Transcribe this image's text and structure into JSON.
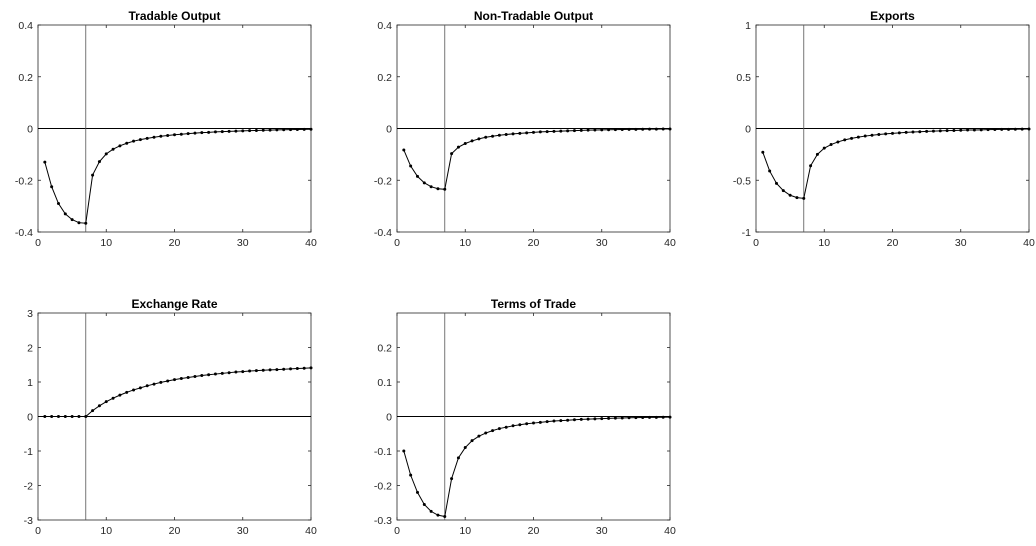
{
  "chart_data": [
    {
      "type": "line",
      "title": "Tradable Output",
      "xlim": [
        0,
        40
      ],
      "ylim": [
        -0.4,
        0.4
      ],
      "xticks": [
        "0",
        "10",
        "20",
        "30",
        "40"
      ],
      "yticks": [
        "-0.4",
        "-0.2",
        "0",
        "0.2",
        "0.4"
      ],
      "vline_x": 7,
      "zero_line": true,
      "x": [
        1,
        2,
        3,
        4,
        5,
        6,
        7,
        8,
        9,
        10,
        11,
        12,
        13,
        14,
        15,
        16,
        17,
        18,
        19,
        20,
        21,
        22,
        23,
        24,
        25,
        26,
        27,
        28,
        29,
        30,
        31,
        32,
        33,
        34,
        35,
        36,
        37,
        38,
        39,
        40
      ],
      "series": [
        {
          "values": [
            -0.13,
            -0.225,
            -0.29,
            -0.33,
            -0.352,
            -0.364,
            -0.366,
            -0.18,
            -0.128,
            -0.098,
            -0.08,
            -0.067,
            -0.057,
            -0.049,
            -0.043,
            -0.038,
            -0.034,
            -0.03,
            -0.027,
            -0.024,
            -0.022,
            -0.02,
            -0.018,
            -0.016,
            -0.015,
            -0.013,
            -0.012,
            -0.011,
            -0.01,
            -0.009,
            -0.008,
            -0.0075,
            -0.007,
            -0.0062,
            -0.0055,
            -0.005,
            -0.0045,
            -0.004,
            -0.0035,
            -0.003
          ]
        }
      ]
    },
    {
      "type": "line",
      "title": "Non-Tradable Output",
      "xlim": [
        0,
        40
      ],
      "ylim": [
        -0.4,
        0.4
      ],
      "xticks": [
        "0",
        "10",
        "20",
        "30",
        "40"
      ],
      "yticks": [
        "-0.4",
        "-0.2",
        "0",
        "0.2",
        "0.4"
      ],
      "vline_x": 7,
      "zero_line": true,
      "x": [
        1,
        2,
        3,
        4,
        5,
        6,
        7,
        8,
        9,
        10,
        11,
        12,
        13,
        14,
        15,
        16,
        17,
        18,
        19,
        20,
        21,
        22,
        23,
        24,
        25,
        26,
        27,
        28,
        29,
        30,
        31,
        32,
        33,
        34,
        35,
        36,
        37,
        38,
        39,
        40
      ],
      "series": [
        {
          "values": [
            -0.083,
            -0.145,
            -0.185,
            -0.21,
            -0.225,
            -0.233,
            -0.235,
            -0.097,
            -0.072,
            -0.058,
            -0.048,
            -0.04,
            -0.034,
            -0.03,
            -0.026,
            -0.023,
            -0.021,
            -0.019,
            -0.017,
            -0.015,
            -0.013,
            -0.012,
            -0.011,
            -0.01,
            -0.009,
            -0.008,
            -0.0072,
            -0.0065,
            -0.006,
            -0.0054,
            -0.0049,
            -0.0044,
            -0.004,
            -0.0036,
            -0.0032,
            -0.0029,
            -0.0026,
            -0.0023,
            -0.002,
            -0.0018
          ]
        }
      ]
    },
    {
      "type": "line",
      "title": "Exports",
      "xlim": [
        0,
        40
      ],
      "ylim": [
        -1,
        1
      ],
      "xticks": [
        "0",
        "10",
        "20",
        "30",
        "40"
      ],
      "yticks": [
        "-1",
        "-0.5",
        "0",
        "0.5",
        "1"
      ],
      "vline_x": 7,
      "zero_line": true,
      "x": [
        1,
        2,
        3,
        4,
        5,
        6,
        7,
        8,
        9,
        10,
        11,
        12,
        13,
        14,
        15,
        16,
        17,
        18,
        19,
        20,
        21,
        22,
        23,
        24,
        25,
        26,
        27,
        28,
        29,
        30,
        31,
        32,
        33,
        34,
        35,
        36,
        37,
        38,
        39,
        40
      ],
      "series": [
        {
          "values": [
            -0.23,
            -0.41,
            -0.53,
            -0.6,
            -0.645,
            -0.668,
            -0.675,
            -0.36,
            -0.25,
            -0.19,
            -0.155,
            -0.13,
            -0.11,
            -0.095,
            -0.083,
            -0.073,
            -0.065,
            -0.058,
            -0.052,
            -0.047,
            -0.042,
            -0.038,
            -0.034,
            -0.031,
            -0.028,
            -0.025,
            -0.023,
            -0.021,
            -0.019,
            -0.017,
            -0.015,
            -0.014,
            -0.013,
            -0.011,
            -0.01,
            -0.009,
            -0.008,
            -0.007,
            -0.006,
            -0.005
          ]
        }
      ]
    },
    {
      "type": "line",
      "title": "Exchange Rate",
      "xlim": [
        0,
        40
      ],
      "ylim": [
        -3,
        3
      ],
      "xticks": [
        "0",
        "10",
        "20",
        "30",
        "40"
      ],
      "yticks": [
        "-3",
        "-2",
        "-1",
        "0",
        "1",
        "2",
        "3"
      ],
      "vline_x": 7,
      "zero_line": true,
      "x": [
        1,
        2,
        3,
        4,
        5,
        6,
        7,
        8,
        9,
        10,
        11,
        12,
        13,
        14,
        15,
        16,
        17,
        18,
        19,
        20,
        21,
        22,
        23,
        24,
        25,
        26,
        27,
        28,
        29,
        30,
        31,
        32,
        33,
        34,
        35,
        36,
        37,
        38,
        39,
        40
      ],
      "series": [
        {
          "values": [
            0,
            0,
            0,
            0,
            0,
            0,
            0,
            0.17,
            0.31,
            0.43,
            0.53,
            0.62,
            0.7,
            0.77,
            0.83,
            0.89,
            0.94,
            0.99,
            1.03,
            1.07,
            1.1,
            1.13,
            1.16,
            1.19,
            1.21,
            1.23,
            1.25,
            1.27,
            1.29,
            1.3,
            1.32,
            1.33,
            1.34,
            1.35,
            1.36,
            1.37,
            1.38,
            1.39,
            1.4,
            1.41
          ]
        }
      ]
    },
    {
      "type": "line",
      "title": "Terms of Trade",
      "xlim": [
        0,
        40
      ],
      "ylim": [
        -0.3,
        0.3
      ],
      "xticks": [
        "0",
        "10",
        "20",
        "30",
        "40"
      ],
      "yticks": [
        "-0.3",
        "-0.2",
        "-0.1",
        "0",
        "0.1",
        "0.2"
      ],
      "vline_x": 7,
      "zero_line": true,
      "x": [
        1,
        2,
        3,
        4,
        5,
        6,
        7,
        8,
        9,
        10,
        11,
        12,
        13,
        14,
        15,
        16,
        17,
        18,
        19,
        20,
        21,
        22,
        23,
        24,
        25,
        26,
        27,
        28,
        29,
        30,
        31,
        32,
        33,
        34,
        35,
        36,
        37,
        38,
        39,
        40
      ],
      "series": [
        {
          "values": [
            -0.1,
            -0.17,
            -0.22,
            -0.255,
            -0.275,
            -0.286,
            -0.29,
            -0.18,
            -0.12,
            -0.09,
            -0.07,
            -0.057,
            -0.048,
            -0.041,
            -0.035,
            -0.031,
            -0.027,
            -0.024,
            -0.021,
            -0.019,
            -0.017,
            -0.015,
            -0.013,
            -0.012,
            -0.011,
            -0.0095,
            -0.0085,
            -0.0076,
            -0.0068,
            -0.006,
            -0.0054,
            -0.0048,
            -0.0043,
            -0.0038,
            -0.0034,
            -0.003,
            -0.0027,
            -0.0024,
            -0.0021,
            -0.0019
          ]
        }
      ]
    }
  ]
}
